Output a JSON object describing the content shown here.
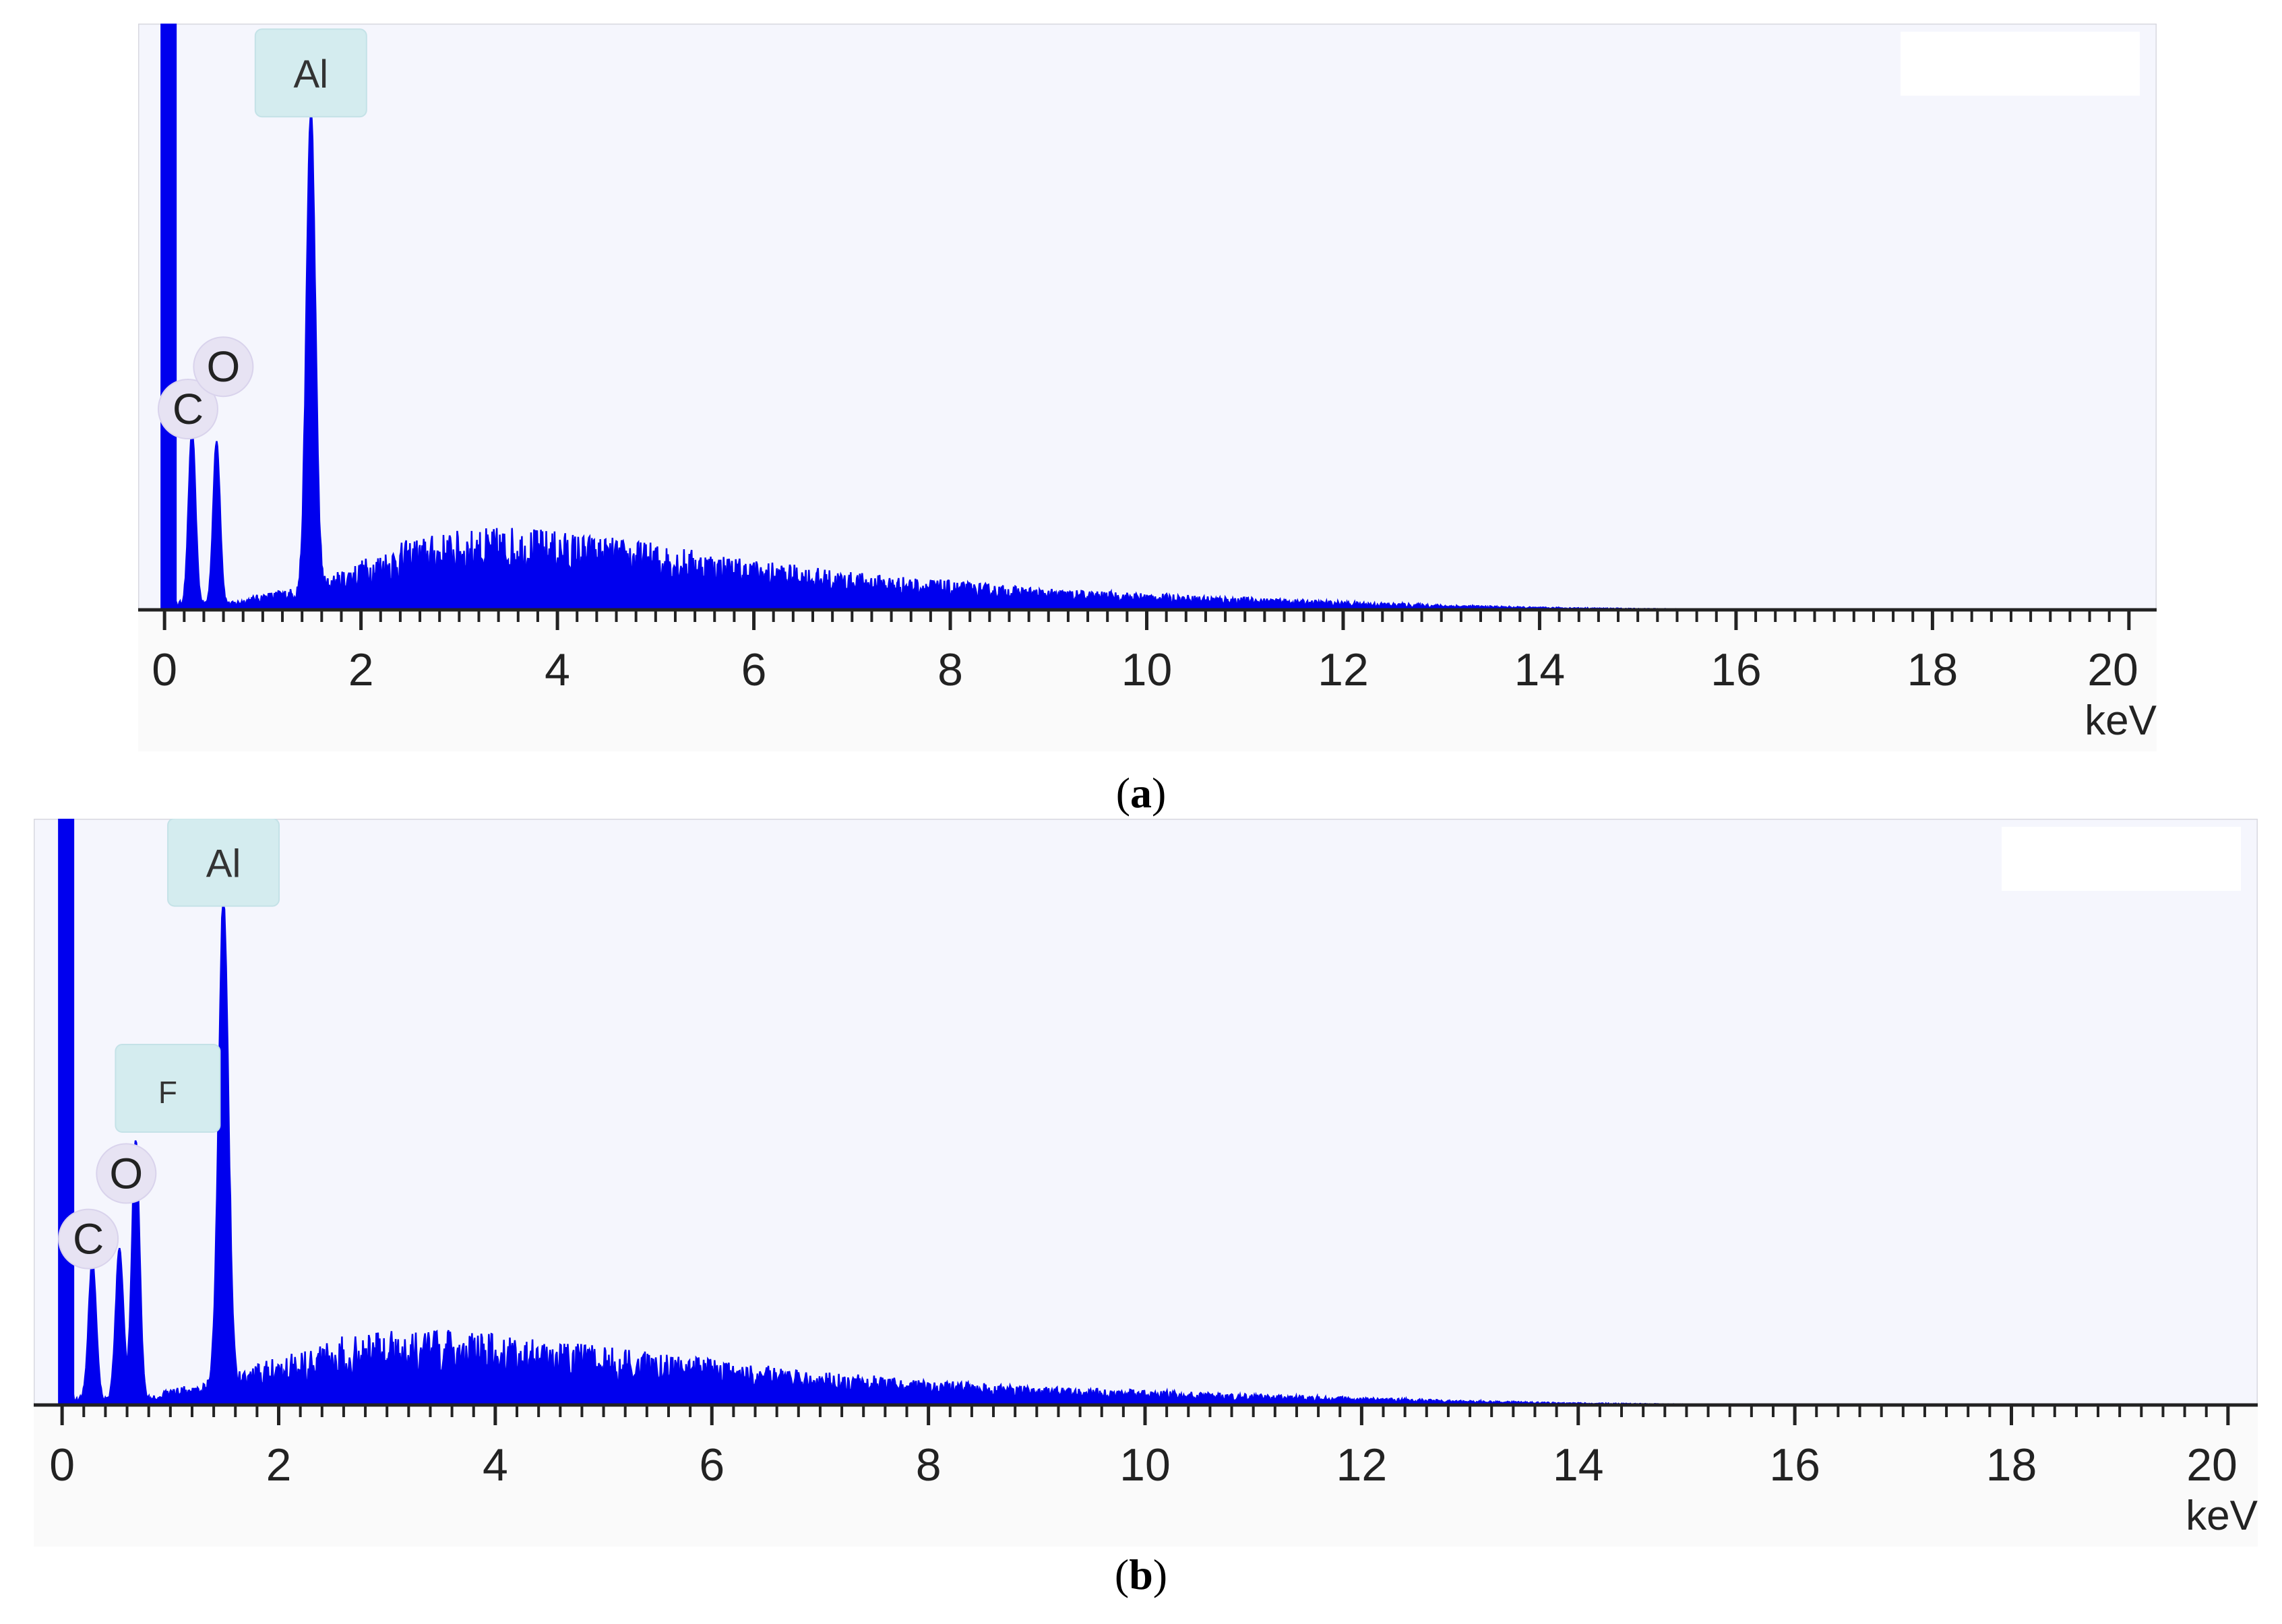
{
  "captions": {
    "a": "a",
    "b": "b"
  },
  "chart_data": [
    {
      "type": "line",
      "panel": "a",
      "xlabel": "keV",
      "ylabel": "",
      "xlim": [
        -0.2,
        20.2
      ],
      "ylim": [
        0,
        100
      ],
      "xticks": [
        "0",
        "2",
        "4",
        "6",
        "8",
        "10",
        "12",
        "14",
        "16",
        "18",
        "20"
      ],
      "line_color": "#0000ee",
      "plot_background": "#f5f6fd",
      "peaks": [
        {
          "label": "C",
          "x": 0.28,
          "y": 30,
          "style": "circle"
        },
        {
          "label": "O",
          "x": 0.53,
          "y": 28,
          "style": "circle"
        },
        {
          "label": "Al",
          "x": 1.49,
          "y": 83,
          "style": "box"
        }
      ],
      "background_curve": {
        "x": [
          0.7,
          1.0,
          1.5,
          2.0,
          2.5,
          3.0,
          3.5,
          4.0,
          5.0,
          6.0,
          7.0,
          8.0,
          9.0,
          10.0,
          11.0,
          12.0,
          13.0,
          14.0,
          15.0,
          16.0,
          20.0
        ],
        "y": [
          1,
          2,
          3,
          6,
          8.5,
          9.5,
          10,
          9.5,
          8,
          6,
          4.5,
          3.5,
          2.5,
          2,
          1.5,
          1,
          0.6,
          0.3,
          0.15,
          0.05,
          0
        ]
      },
      "offscale_peak_x": 0.0
    },
    {
      "type": "line",
      "panel": "b",
      "xlabel": "keV",
      "ylabel": "",
      "xlim": [
        -0.2,
        20.2
      ],
      "ylim": [
        0,
        100
      ],
      "xticks": [
        "0",
        "2",
        "4",
        "6",
        "8",
        "10",
        "12",
        "14",
        "16",
        "18",
        "20"
      ],
      "line_color": "#0000ee",
      "plot_background": "#f5f6fd",
      "peaks": [
        {
          "label": "C",
          "x": 0.28,
          "y": 24,
          "style": "circle"
        },
        {
          "label": "O",
          "x": 0.53,
          "y": 26,
          "style": "circle"
        },
        {
          "label": "F",
          "x": 0.68,
          "y": 45,
          "style": "box"
        },
        {
          "label": "Al",
          "x": 1.49,
          "y": 84,
          "style": "box"
        }
      ],
      "background_curve": {
        "x": [
          0.8,
          1.0,
          1.5,
          2.0,
          2.5,
          3.0,
          3.5,
          4.0,
          5.0,
          6.0,
          7.0,
          8.0,
          9.0,
          10.0,
          11.0,
          12.0,
          13.0,
          14.0,
          15.0,
          16.0,
          20.0
        ],
        "y": [
          1,
          2,
          3,
          6,
          8,
          9,
          9,
          8.5,
          7,
          5.5,
          4,
          3,
          2.2,
          1.8,
          1.3,
          0.9,
          0.5,
          0.25,
          0.1,
          0.05,
          0
        ]
      },
      "offscale_peak_x": 0.0
    }
  ]
}
